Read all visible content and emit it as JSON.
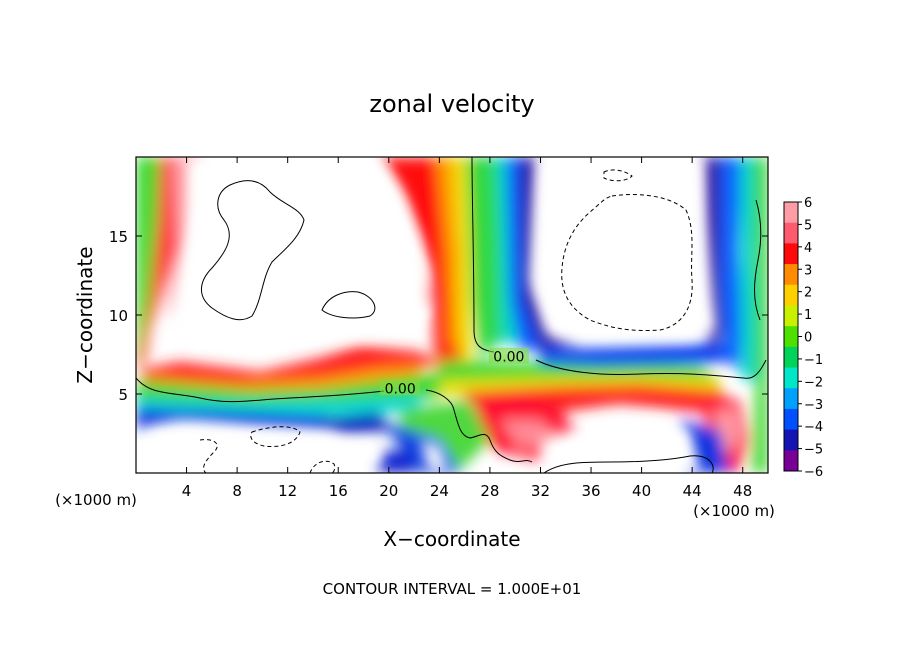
{
  "chart_data": {
    "type": "heatmap",
    "title": "zonal velocity",
    "xlabel": "X−coordinate",
    "ylabel": "Z−coordinate",
    "x_unit_left": "(×1000 m)",
    "x_unit_right": "(×1000 m)",
    "footer": "CONTOUR INTERVAL = 1.000E+01",
    "xlim": [
      0,
      50
    ],
    "ylim": [
      0,
      20
    ],
    "x_ticks": [
      {
        "value": 4,
        "label": "4"
      },
      {
        "value": 8,
        "label": "8"
      },
      {
        "value": 12,
        "label": "12"
      },
      {
        "value": 16,
        "label": "16"
      },
      {
        "value": 20,
        "label": "20"
      },
      {
        "value": 24,
        "label": "24"
      },
      {
        "value": 28,
        "label": "28"
      },
      {
        "value": 32,
        "label": "32"
      },
      {
        "value": 36,
        "label": "36"
      },
      {
        "value": 40,
        "label": "40"
      },
      {
        "value": 44,
        "label": "44"
      },
      {
        "value": 48,
        "label": "48"
      }
    ],
    "y_ticks": [
      {
        "value": 5,
        "label": "5"
      },
      {
        "value": 10,
        "label": "10"
      },
      {
        "value": 15,
        "label": "15"
      }
    ],
    "colorbar": {
      "min": -6,
      "max": 6,
      "labels": [
        "6",
        "5",
        "4",
        "3",
        "2",
        "1",
        "0",
        "−1",
        "−2",
        "−3",
        "−4",
        "−5",
        "−6"
      ],
      "colors": [
        "#ff9da6",
        "#ff5a6e",
        "#ff0a0a",
        "#ff8c00",
        "#ffd000",
        "#c8f000",
        "#50e000",
        "#00d25a",
        "#00e6c8",
        "#00a0ff",
        "#0050ff",
        "#1414b4",
        "#780096"
      ]
    },
    "contour_labels": [
      {
        "x": 20.9,
        "y": 5.3,
        "text": "0.00"
      },
      {
        "x": 29.5,
        "y": 7.3,
        "text": "0.00"
      }
    ]
  }
}
